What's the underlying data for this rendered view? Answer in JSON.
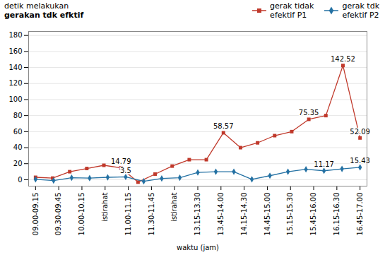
{
  "chart_data": {
    "type": "line",
    "xlabel": "waktu (jam)",
    "ylabel": "detik melakukan\ngerakan tdk efktif",
    "xlim": [
      -0.3,
      14.3
    ],
    "xticks": [
      {
        "value": 0,
        "label": "09.00-09.15"
      },
      {
        "value": 1,
        "label": "09.30-09.45"
      },
      {
        "value": 2,
        "label": "10.00-10.15"
      },
      {
        "value": 3,
        "label": "istirahat"
      },
      {
        "value": 4,
        "label": "11.00-11.15"
      },
      {
        "value": 5,
        "label": "11.30-11.45"
      },
      {
        "value": 6,
        "label": "istirahat"
      },
      {
        "value": 7,
        "label": "13.15-13.30"
      },
      {
        "value": 8,
        "label": "13.45-14.00"
      },
      {
        "value": 9,
        "label": "14.15-14.30"
      },
      {
        "value": 10,
        "label": "14.45-15.00"
      },
      {
        "value": 11,
        "label": "15.15-15.30"
      },
      {
        "value": 12,
        "label": "15.45-16.00"
      },
      {
        "value": 13,
        "label": "16.15-16.30"
      },
      {
        "value": 14,
        "label": "16.45-17.00"
      }
    ],
    "ylim": [
      -8,
      185
    ],
    "yticks": [
      0,
      20,
      40,
      60,
      80,
      100,
      120,
      140,
      160,
      180
    ],
    "grid": true,
    "legend": "upper right",
    "series": [
      {
        "name": "gerak tidak\nefektif P1",
        "color": "#C0392B",
        "marker": "square",
        "x": [
          0,
          0.7368421052631579,
          1.4736842105263157,
          2.210526315789474,
          2.9473684210526314,
          3.6842105263157894,
          4.421052631578948,
          5.157894736842105,
          5.894736842105263,
          6.631578947368421,
          7.368421052631579,
          8.105263157894736,
          8.842105263157896,
          9.578947368421053,
          10.31578947368421,
          11.052631578947368,
          11.789473684210526,
          12.526315789473685,
          13.263157894736842,
          14
        ],
        "values": [
          3.0,
          2.0,
          10.0,
          14.0,
          18.0,
          14.79,
          -3.0,
          7.0,
          17.0,
          25.0,
          25.0,
          58.57,
          40.0,
          46.0,
          55.0,
          60.0,
          75.35,
          80.0,
          142.52,
          52.09
        ]
      },
      {
        "name": "gerak tdk\nefektif P2",
        "color": "#2471A3",
        "marker": "diamond",
        "x": [
          0,
          0.7777777777777778,
          1.5555555555555556,
          2.3333333333333335,
          3.111111111111111,
          3.888888888888889,
          4.666666666666667,
          5.444444444444445,
          6.222222222222222,
          7,
          7.777777777777778,
          8.555555555555555,
          9.333333333333334,
          10.11111111111111,
          10.88888888888889,
          11.666666666666666,
          12.444444444444445,
          13.222222222222221,
          14
        ],
        "values": [
          0.5,
          -1.0,
          2.5,
          2.0,
          3.0,
          3.5,
          -2.0,
          1.5,
          2.5,
          9.0,
          10.0,
          10.0,
          0.5,
          5.0,
          10.0,
          13.0,
          11.17,
          13.5,
          15.43
        ]
      }
    ],
    "annotations": [
      {
        "text": "14.79",
        "x": 3.6842105263157894,
        "y": 14.79
      },
      {
        "text": "58.57",
        "x": 8.105263157894736,
        "y": 58.57
      },
      {
        "text": "75.35",
        "x": 11.789473684210526,
        "y": 75.35
      },
      {
        "text": "142.52",
        "x": 13.263157894736842,
        "y": 142.52
      },
      {
        "text": "52.09",
        "x": 14,
        "y": 52.09
      },
      {
        "text": "3.5",
        "x": 3.888888888888889,
        "y": 3.5
      },
      {
        "text": "11.17",
        "x": 12.444444444444445,
        "y": 11.17
      },
      {
        "text": "15.43",
        "x": 14,
        "y": 15.43
      }
    ]
  }
}
